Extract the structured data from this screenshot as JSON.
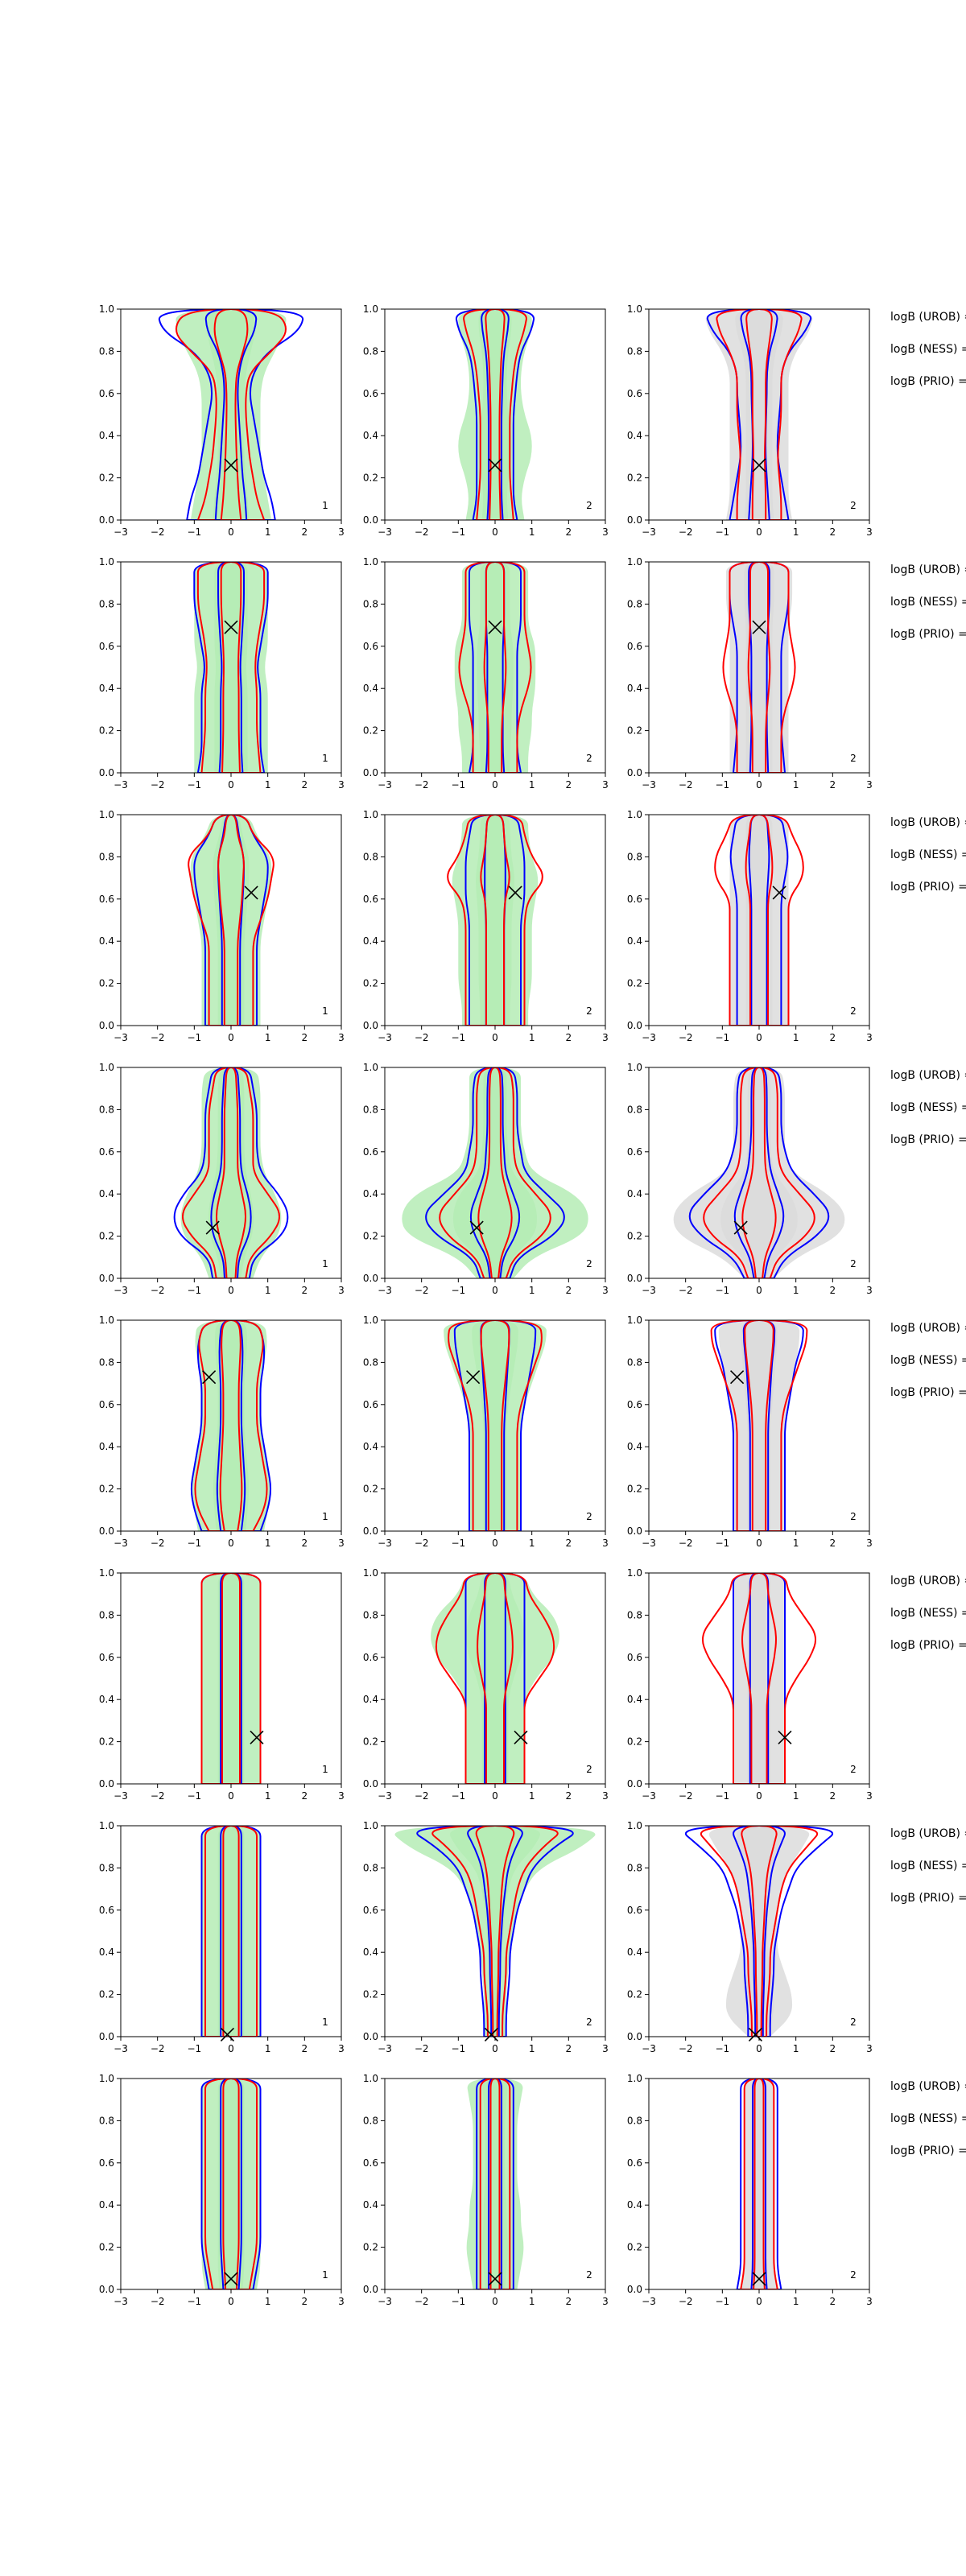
{
  "figure": {
    "row_labels": [
      "logB (UROB) =",
      "logB (NESS) =",
      "logB (PRIO) ="
    ],
    "colors": {
      "blue": "#0000ff",
      "red": "#ff0000",
      "fill_green": "#b5ecb5",
      "fill_gray": "#dcdcdc",
      "marker": "#000000"
    }
  },
  "chart_data": {
    "type": "violin-contour grid",
    "rows": 8,
    "columns": 3,
    "xlim": [
      -3,
      3
    ],
    "ylim": [
      0,
      1
    ],
    "x_ticks": [
      "−3",
      "−2",
      "−1",
      "0",
      "1",
      "2",
      "3"
    ],
    "y_ticks": [
      "0.0",
      "0.2",
      "0.4",
      "0.6",
      "0.8",
      "1.0"
    ],
    "panel_labels": [
      "1",
      "2",
      "2"
    ],
    "grid": false,
    "markers": [
      {
        "row": 1,
        "x": 0.0,
        "y": 0.26
      },
      {
        "row": 2,
        "x": 0.0,
        "y": 0.69
      },
      {
        "row": 3,
        "x": 0.55,
        "y": 0.63
      },
      {
        "row": 4,
        "x": -0.5,
        "y": 0.24
      },
      {
        "row": 5,
        "x": -0.6,
        "y": 0.73
      },
      {
        "row": 6,
        "x": 0.7,
        "y": 0.22
      },
      {
        "row": 7,
        "x": -0.1,
        "y": 0.01
      },
      {
        "row": 8,
        "x": 0.0,
        "y": 0.05
      }
    ],
    "contours": [
      [
        {
          "blue": [
            1.2,
            1.1,
            0.9,
            0.8,
            0.7,
            0.6,
            0.5,
            0.6,
            1.0,
            1.9,
            2.0
          ],
          "red": [
            0.9,
            0.7,
            0.6,
            0.5,
            0.45,
            0.4,
            0.4,
            0.5,
            1.1,
            1.6,
            1.2
          ],
          "fill": [
            1.1,
            1.0,
            0.9,
            0.8,
            0.8,
            0.8,
            0.8,
            0.9,
            1.2,
            1.5,
            1.5
          ]
        },
        {
          "blue": [
            0.6,
            0.5,
            0.5,
            0.5,
            0.5,
            0.5,
            0.55,
            0.6,
            0.7,
            1.0,
            1.1
          ],
          "red": [
            0.5,
            0.45,
            0.4,
            0.4,
            0.4,
            0.4,
            0.45,
            0.5,
            0.6,
            0.8,
            0.9
          ],
          "fill": [
            0.8,
            0.7,
            0.8,
            1.0,
            1.0,
            0.8,
            0.7,
            0.7,
            0.8,
            1.0,
            1.0
          ]
        },
        {
          "blue": [
            0.8,
            0.7,
            0.6,
            0.5,
            0.5,
            0.55,
            0.6,
            0.6,
            0.8,
            1.3,
            1.5
          ],
          "red": [
            0.6,
            0.6,
            0.55,
            0.5,
            0.55,
            0.6,
            0.6,
            0.6,
            0.8,
            1.1,
            1.2
          ],
          "fill": [
            0.9,
            0.8,
            0.8,
            0.8,
            0.8,
            0.8,
            0.8,
            0.8,
            1.0,
            1.4,
            1.5
          ]
        }
      ],
      [
        {
          "blue": [
            0.9,
            0.8,
            0.8,
            0.8,
            0.8,
            0.7,
            0.8,
            0.9,
            1.0,
            1.0,
            1.0
          ],
          "red": [
            0.8,
            0.75,
            0.7,
            0.7,
            0.7,
            0.65,
            0.7,
            0.8,
            0.9,
            0.9,
            0.9
          ],
          "fill": [
            1.0,
            1.0,
            1.0,
            1.0,
            1.0,
            0.9,
            1.0,
            1.0,
            1.0,
            1.0,
            1.0
          ]
        },
        {
          "blue": [
            0.7,
            0.6,
            0.6,
            0.6,
            0.6,
            0.6,
            0.6,
            0.7,
            0.7,
            0.7,
            0.7
          ],
          "red": [
            0.6,
            0.6,
            0.6,
            0.7,
            0.9,
            1.0,
            0.9,
            0.8,
            0.8,
            0.8,
            0.8
          ],
          "fill": [
            0.9,
            0.9,
            1.0,
            1.0,
            1.1,
            1.1,
            1.1,
            0.9,
            0.9,
            0.9,
            0.9
          ]
        },
        {
          "blue": [
            0.7,
            0.65,
            0.6,
            0.6,
            0.6,
            0.6,
            0.6,
            0.7,
            0.8,
            0.8,
            0.8
          ],
          "red": [
            0.6,
            0.6,
            0.6,
            0.7,
            0.9,
            1.0,
            0.9,
            0.8,
            0.8,
            0.8,
            0.8
          ],
          "fill": [
            0.8,
            0.8,
            0.8,
            0.8,
            0.8,
            0.8,
            0.8,
            0.8,
            0.9,
            0.9,
            0.9
          ]
        }
      ],
      [
        {
          "blue": [
            0.7,
            0.7,
            0.7,
            0.7,
            0.7,
            0.8,
            0.9,
            1.0,
            1.0,
            0.6,
            0.4
          ],
          "red": [
            0.6,
            0.6,
            0.6,
            0.6,
            0.6,
            0.8,
            1.0,
            1.1,
            1.2,
            0.6,
            0.4
          ],
          "fill": [
            0.8,
            0.8,
            0.8,
            0.8,
            0.8,
            0.9,
            1.0,
            1.1,
            1.1,
            0.7,
            0.5
          ]
        },
        {
          "blue": [
            0.7,
            0.7,
            0.7,
            0.7,
            0.7,
            0.7,
            0.8,
            0.8,
            0.8,
            0.7,
            0.6
          ],
          "red": [
            0.8,
            0.8,
            0.8,
            0.8,
            0.8,
            0.8,
            0.9,
            1.4,
            1.0,
            0.8,
            0.7
          ],
          "fill": [
            0.9,
            0.9,
            1.0,
            1.0,
            1.0,
            1.0,
            1.1,
            1.2,
            1.0,
            0.9,
            0.9
          ]
        },
        {
          "blue": [
            0.6,
            0.6,
            0.6,
            0.6,
            0.6,
            0.6,
            0.6,
            0.7,
            0.8,
            0.7,
            0.6
          ],
          "red": [
            0.8,
            0.8,
            0.8,
            0.8,
            0.8,
            0.8,
            0.8,
            1.2,
            1.2,
            0.9,
            0.7
          ],
          "fill": [
            0.8,
            0.8,
            0.8,
            0.8,
            0.8,
            0.8,
            0.8,
            0.8,
            0.8,
            0.8,
            0.8
          ]
        }
      ],
      [
        {
          "blue": [
            0.5,
            0.6,
            1.4,
            1.6,
            1.3,
            0.8,
            0.7,
            0.7,
            0.7,
            0.6,
            0.5
          ],
          "red": [
            0.4,
            0.5,
            1.1,
            1.4,
            1.0,
            0.6,
            0.6,
            0.6,
            0.6,
            0.5,
            0.4
          ],
          "fill": [
            0.6,
            0.8,
            1.3,
            1.4,
            1.2,
            0.9,
            0.8,
            0.8,
            0.8,
            0.8,
            0.7
          ]
        },
        {
          "blue": [
            0.4,
            0.6,
            1.6,
            2.0,
            1.4,
            0.8,
            0.7,
            0.6,
            0.6,
            0.6,
            0.5
          ],
          "red": [
            0.3,
            0.5,
            1.3,
            1.6,
            1.1,
            0.6,
            0.5,
            0.5,
            0.5,
            0.5,
            0.4
          ],
          "fill": [
            0.5,
            1.0,
            2.4,
            2.6,
            2.2,
            1.0,
            0.8,
            0.7,
            0.7,
            0.7,
            0.7
          ]
        },
        {
          "blue": [
            0.4,
            0.7,
            1.6,
            2.0,
            1.5,
            0.9,
            0.7,
            0.6,
            0.6,
            0.6,
            0.5
          ],
          "red": [
            0.3,
            0.5,
            1.3,
            1.6,
            1.1,
            0.6,
            0.5,
            0.5,
            0.5,
            0.5,
            0.4
          ],
          "fill": [
            0.4,
            1.0,
            2.2,
            2.4,
            1.9,
            0.9,
            0.7,
            0.7,
            0.7,
            0.7,
            0.6
          ]
        }
      ],
      [
        {
          "blue": [
            0.8,
            1.0,
            1.1,
            1.0,
            0.9,
            0.8,
            0.8,
            0.8,
            0.9,
            0.9,
            0.7
          ],
          "red": [
            0.6,
            0.9,
            1.0,
            0.9,
            0.8,
            0.7,
            0.7,
            0.7,
            0.8,
            0.9,
            0.7
          ],
          "fill": [
            0.9,
            1.0,
            1.1,
            1.0,
            0.9,
            0.8,
            0.8,
            0.8,
            0.9,
            1.0,
            0.9
          ]
        },
        {
          "blue": [
            0.7,
            0.7,
            0.7,
            0.7,
            0.7,
            0.7,
            0.8,
            0.9,
            1.0,
            1.1,
            1.1
          ],
          "red": [
            0.6,
            0.6,
            0.6,
            0.6,
            0.6,
            0.6,
            0.7,
            0.9,
            1.1,
            1.3,
            1.2
          ],
          "fill": [
            0.7,
            0.7,
            0.7,
            0.7,
            0.7,
            0.7,
            0.8,
            1.0,
            1.2,
            1.4,
            1.4
          ]
        },
        {
          "blue": [
            0.7,
            0.7,
            0.7,
            0.7,
            0.7,
            0.7,
            0.8,
            0.9,
            1.0,
            1.2,
            1.2
          ],
          "red": [
            0.6,
            0.6,
            0.6,
            0.6,
            0.6,
            0.6,
            0.7,
            0.9,
            1.1,
            1.3,
            1.3
          ],
          "fill": [
            0.7,
            0.7,
            0.7,
            0.7,
            0.7,
            0.7,
            0.8,
            0.9,
            1.0,
            1.1,
            1.1
          ]
        }
      ],
      [
        {
          "blue": [
            0.8,
            0.8,
            0.8,
            0.8,
            0.8,
            0.8,
            0.8,
            0.8,
            0.8,
            0.8,
            0.8
          ],
          "red": [
            0.8,
            0.8,
            0.8,
            0.8,
            0.8,
            0.8,
            0.8,
            0.8,
            0.8,
            0.8,
            0.8
          ],
          "fill": [
            0.8,
            0.8,
            0.8,
            0.8,
            0.8,
            0.8,
            0.8,
            0.8,
            0.8,
            0.8,
            0.8
          ]
        },
        {
          "blue": [
            0.8,
            0.8,
            0.8,
            0.8,
            0.8,
            0.8,
            0.8,
            0.8,
            0.8,
            0.8,
            0.8
          ],
          "red": [
            0.8,
            0.8,
            0.8,
            0.8,
            0.8,
            1.2,
            1.6,
            1.6,
            1.3,
            0.9,
            0.8
          ],
          "fill": [
            0.8,
            0.8,
            0.8,
            0.8,
            0.8,
            1.1,
            1.6,
            1.8,
            1.6,
            1.0,
            0.8
          ]
        },
        {
          "blue": [
            0.7,
            0.7,
            0.7,
            0.7,
            0.7,
            0.7,
            0.7,
            0.7,
            0.7,
            0.7,
            0.7
          ],
          "red": [
            0.7,
            0.7,
            0.7,
            0.7,
            0.7,
            1.0,
            1.4,
            1.6,
            1.2,
            0.8,
            0.7
          ],
          "fill": [
            0.7,
            0.7,
            0.7,
            0.7,
            0.7,
            0.7,
            0.7,
            0.7,
            0.7,
            0.7,
            0.7
          ]
        }
      ],
      [
        {
          "blue": [
            0.8,
            0.8,
            0.8,
            0.8,
            0.8,
            0.8,
            0.8,
            0.8,
            0.8,
            0.8,
            0.8
          ],
          "red": [
            0.7,
            0.7,
            0.7,
            0.7,
            0.7,
            0.7,
            0.7,
            0.7,
            0.7,
            0.7,
            0.7
          ],
          "fill": [
            0.8,
            0.8,
            0.8,
            0.8,
            0.8,
            0.8,
            0.8,
            0.8,
            0.8,
            0.8,
            0.8
          ]
        },
        {
          "blue": [
            0.3,
            0.3,
            0.35,
            0.4,
            0.4,
            0.5,
            0.6,
            0.8,
            1.0,
            1.6,
            2.5
          ],
          "red": [
            0.2,
            0.2,
            0.25,
            0.3,
            0.3,
            0.4,
            0.5,
            0.6,
            0.8,
            1.3,
            2.0
          ],
          "fill": [
            0.3,
            0.3,
            0.3,
            0.35,
            0.4,
            0.5,
            0.6,
            0.8,
            1.2,
            2.4,
            3.0
          ]
        },
        {
          "blue": [
            0.3,
            0.3,
            0.35,
            0.4,
            0.4,
            0.5,
            0.6,
            0.8,
            1.0,
            1.6,
            2.3
          ],
          "red": [
            0.2,
            0.2,
            0.25,
            0.3,
            0.3,
            0.4,
            0.5,
            0.6,
            0.8,
            1.3,
            1.8
          ],
          "fill": [
            0.3,
            0.9,
            0.9,
            0.7,
            0.5,
            0.5,
            0.5,
            0.6,
            0.8,
            1.2,
            1.5
          ]
        }
      ],
      [
        {
          "blue": [
            0.6,
            0.7,
            0.8,
            0.8,
            0.8,
            0.8,
            0.8,
            0.8,
            0.8,
            0.8,
            0.8
          ],
          "red": [
            0.5,
            0.6,
            0.7,
            0.7,
            0.7,
            0.7,
            0.7,
            0.7,
            0.7,
            0.7,
            0.7
          ],
          "fill": [
            0.7,
            0.8,
            0.8,
            0.8,
            0.8,
            0.8,
            0.8,
            0.8,
            0.8,
            0.8,
            0.8
          ]
        },
        {
          "blue": [
            0.5,
            0.5,
            0.5,
            0.5,
            0.5,
            0.5,
            0.5,
            0.5,
            0.5,
            0.5,
            0.5
          ],
          "red": [
            0.4,
            0.4,
            0.4,
            0.4,
            0.4,
            0.4,
            0.4,
            0.4,
            0.4,
            0.4,
            0.4
          ],
          "fill": [
            0.6,
            0.7,
            0.8,
            0.7,
            0.7,
            0.6,
            0.6,
            0.6,
            0.6,
            0.7,
            0.8
          ]
        },
        {
          "blue": [
            0.6,
            0.5,
            0.5,
            0.5,
            0.5,
            0.5,
            0.5,
            0.5,
            0.5,
            0.5,
            0.5
          ],
          "red": [
            0.5,
            0.4,
            0.4,
            0.4,
            0.4,
            0.4,
            0.4,
            0.4,
            0.4,
            0.4,
            0.4
          ],
          "fill": [
            0.5,
            0.4,
            0.4,
            0.4,
            0.4,
            0.4,
            0.4,
            0.4,
            0.4,
            0.4,
            0.4
          ]
        }
      ]
    ]
  }
}
